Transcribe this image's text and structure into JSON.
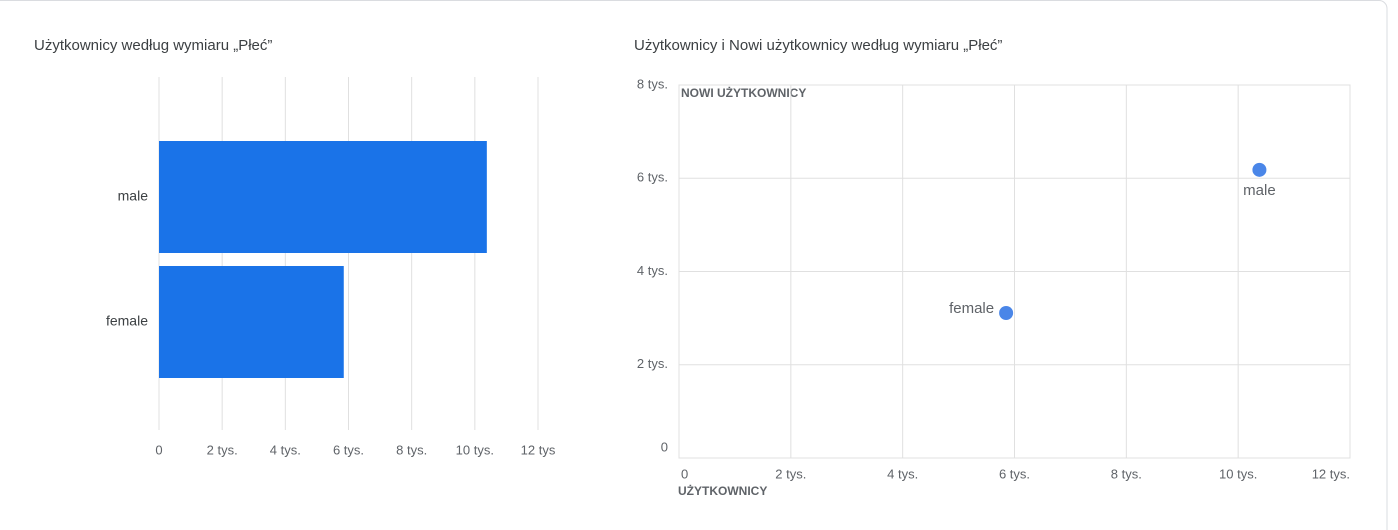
{
  "chart_data": [
    {
      "type": "bar",
      "orientation": "horizontal",
      "title": "Użytkownicy według wymiaru „Płeć”",
      "categories": [
        "male",
        "female"
      ],
      "values": [
        10380,
        5850
      ],
      "color": "#1a73e8",
      "xlim": [
        0,
        12000
      ],
      "xticks": [
        0,
        {
          "value": 2000,
          "label": "2 tys."
        },
        {
          "value": 4000,
          "label": "4 tys."
        },
        {
          "value": 6000,
          "label": "6 tys."
        },
        {
          "value": 8000,
          "label": "8 tys."
        },
        {
          "value": 10000,
          "label": "10 tys."
        },
        {
          "value": 12000,
          "label": "12 tys"
        }
      ],
      "grid": true
    },
    {
      "type": "scatter",
      "title": "Użytkownicy i Nowi użytkownicy według wymiaru „Płeć”",
      "x_label": "UŻYTKOWNICY",
      "y_label": "NOWI UŻYTKOWNICY",
      "labels": [
        "male",
        "female"
      ],
      "x": [
        10380,
        5850
      ],
      "y": [
        6180,
        3110
      ],
      "color": "#4a86e8",
      "xlim": [
        0,
        12000
      ],
      "xticks": [
        0,
        {
          "value": 2000,
          "label": "2 tys."
        },
        {
          "value": 4000,
          "label": "4 tys."
        },
        {
          "value": 6000,
          "label": "6 tys."
        },
        {
          "value": 8000,
          "label": "8 tys."
        },
        {
          "value": 10000,
          "label": "10 tys."
        },
        {
          "value": 12000,
          "label": "12 tys."
        }
      ],
      "ylim": [
        0,
        8000
      ],
      "yticks": [
        0,
        {
          "value": 2000,
          "label": "2 tys."
        },
        {
          "value": 4000,
          "label": "4 tys."
        },
        {
          "value": 6000,
          "label": "6 tys."
        },
        {
          "value": 8000,
          "label": "8 tys."
        }
      ],
      "grid": true
    }
  ]
}
